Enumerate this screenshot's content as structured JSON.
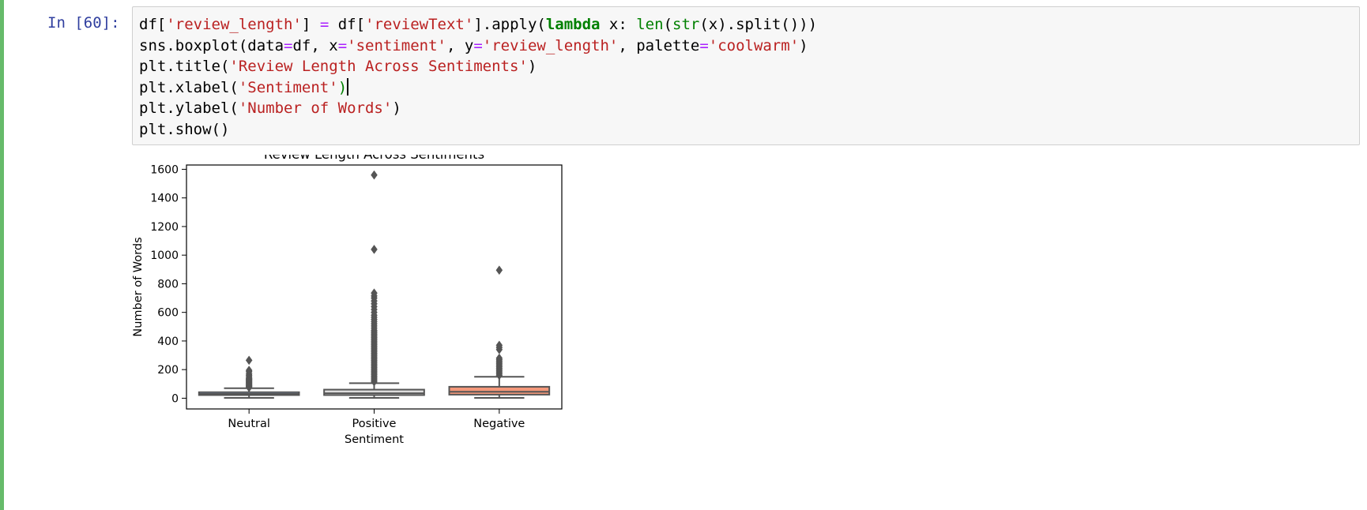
{
  "cell": {
    "prompt": "In [60]:",
    "lines": [
      [
        {
          "t": "df[",
          "c": "p"
        },
        {
          "t": "'review_length'",
          "c": "s"
        },
        {
          "t": "] ",
          "c": "p"
        },
        {
          "t": "=",
          "c": "o"
        },
        {
          "t": " df[",
          "c": "p"
        },
        {
          "t": "'reviewText'",
          "c": "s"
        },
        {
          "t": "].apply(",
          "c": "p"
        },
        {
          "t": "lambda",
          "c": "k"
        },
        {
          "t": " x: ",
          "c": "p"
        },
        {
          "t": "len",
          "c": "b"
        },
        {
          "t": "(",
          "c": "p"
        },
        {
          "t": "str",
          "c": "b"
        },
        {
          "t": "(x).split()))",
          "c": "p"
        }
      ],
      [
        {
          "t": "sns.boxplot(data",
          "c": "p"
        },
        {
          "t": "=",
          "c": "o"
        },
        {
          "t": "df, x",
          "c": "p"
        },
        {
          "t": "=",
          "c": "o"
        },
        {
          "t": "'sentiment'",
          "c": "s"
        },
        {
          "t": ", y",
          "c": "p"
        },
        {
          "t": "=",
          "c": "o"
        },
        {
          "t": "'review_length'",
          "c": "s"
        },
        {
          "t": ", palette",
          "c": "p"
        },
        {
          "t": "=",
          "c": "o"
        },
        {
          "t": "'coolwarm'",
          "c": "s"
        },
        {
          "t": ")",
          "c": "p"
        }
      ],
      [
        {
          "t": "plt.title(",
          "c": "p"
        },
        {
          "t": "'Review Length Across Sentiments'",
          "c": "s"
        },
        {
          "t": ")",
          "c": "p"
        }
      ],
      [
        {
          "t": "plt.xlabel(",
          "c": "p"
        },
        {
          "t": "'Sentiment'",
          "c": "s"
        },
        {
          "t": ")",
          "c": "b"
        }
      ],
      [
        {
          "t": "plt.ylabel(",
          "c": "p"
        },
        {
          "t": "'Number of Words'",
          "c": "s"
        },
        {
          "t": ")",
          "c": "p"
        }
      ],
      [
        {
          "t": "plt.show()",
          "c": "p"
        }
      ]
    ]
  },
  "chart_data": {
    "type": "box",
    "title": "Review Length Across Sentiments",
    "xlabel": "Sentiment",
    "ylabel": "Number of Words",
    "ylim": [
      -75,
      1630
    ],
    "yticks": [
      0,
      200,
      400,
      600,
      800,
      1000,
      1200,
      1400,
      1600
    ],
    "categories": [
      "Neutral",
      "Positive",
      "Negative"
    ],
    "boxes": [
      {
        "name": "Neutral",
        "whisker_low": 2,
        "q1": 22,
        "median": 30,
        "q3": 42,
        "whisker_high": 70,
        "color": "#a2c2fa",
        "outliers": [
          75,
          80,
          85,
          90,
          95,
          100,
          105,
          110,
          115,
          120,
          125,
          130,
          135,
          140,
          150,
          160,
          170,
          185,
          195,
          265
        ]
      },
      {
        "name": "Positive",
        "whisker_low": 2,
        "q1": 22,
        "median": 35,
        "q3": 60,
        "whisker_high": 105,
        "color": "#dddcdc",
        "outliers": [
          115,
          125,
          135,
          145,
          155,
          165,
          175,
          185,
          195,
          205,
          215,
          225,
          235,
          245,
          255,
          265,
          275,
          285,
          295,
          305,
          315,
          325,
          335,
          345,
          355,
          365,
          375,
          385,
          395,
          405,
          415,
          425,
          435,
          445,
          455,
          465,
          475,
          490,
          505,
          520,
          535,
          550,
          565,
          580,
          600,
          620,
          640,
          660,
          680,
          700,
          715,
          735,
          1040,
          1560
        ]
      },
      {
        "name": "Negative",
        "whisker_low": 2,
        "q1": 25,
        "median": 45,
        "q3": 80,
        "whisker_high": 150,
        "color": "#f4987a",
        "outliers": [
          160,
          170,
          180,
          190,
          200,
          210,
          220,
          230,
          240,
          250,
          260,
          270,
          280,
          340,
          355,
          370,
          895
        ]
      }
    ],
    "grid": false,
    "legend": "none"
  }
}
